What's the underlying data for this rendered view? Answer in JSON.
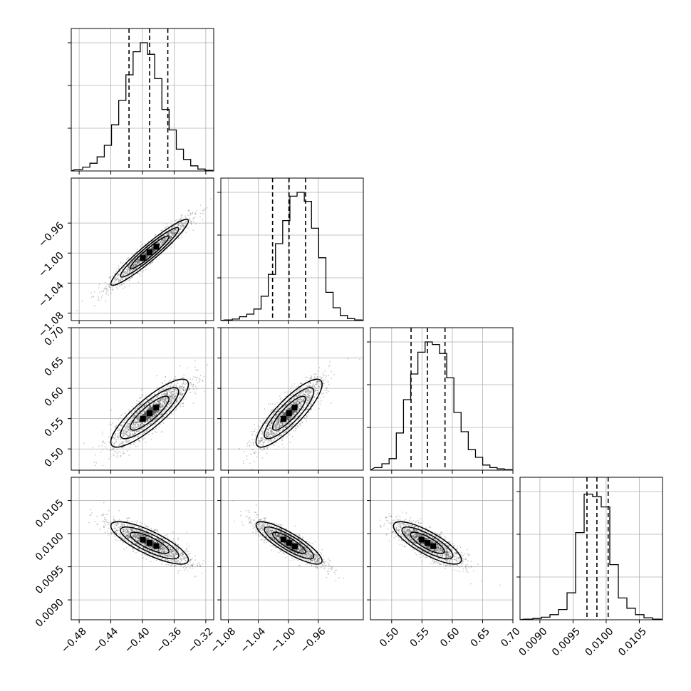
{
  "chart_data": {
    "type": "corner",
    "n_params": 4,
    "grid": true,
    "quantiles": [
      0.16,
      0.5,
      0.84
    ],
    "params": [
      {
        "range": [
          -0.49,
          -0.31
        ],
        "ticks": [
          -0.48,
          -0.44,
          -0.4,
          -0.36,
          -0.32
        ],
        "tick_labels": [
          "−0.48",
          "−0.44",
          "−0.40",
          "−0.36",
          "−0.32"
        ],
        "quantile_values": [
          -0.417,
          -0.391,
          -0.368
        ],
        "hist": [
          0.012,
          0.03,
          0.06,
          0.11,
          0.2,
          0.36,
          0.55,
          0.75,
          0.93,
          1.0,
          0.91,
          0.72,
          0.48,
          0.32,
          0.17,
          0.09,
          0.04,
          0.015,
          0.005
        ]
      },
      {
        "range": [
          -1.09,
          -0.9
        ],
        "ticks": [
          -1.08,
          -1.04,
          -1.0,
          -0.96
        ],
        "tick_labels": [
          "−1.08",
          "−1.04",
          "−1.00",
          "−0.96"
        ],
        "quantile_values": [
          -1.021,
          -0.999,
          -0.977
        ],
        "hist": [
          0.005,
          0.012,
          0.03,
          0.05,
          0.09,
          0.19,
          0.36,
          0.6,
          0.78,
          0.97,
          1.0,
          0.93,
          0.72,
          0.49,
          0.22,
          0.1,
          0.04,
          0.015,
          0.005
        ]
      },
      {
        "range": [
          0.465,
          0.7
        ],
        "ticks": [
          0.5,
          0.55,
          0.6,
          0.65,
          0.7
        ],
        "tick_labels": [
          "0.50",
          "0.55",
          "0.60",
          "0.65",
          "0.70"
        ],
        "quantile_values": [
          0.532,
          0.559,
          0.588
        ],
        "hist": [
          0.02,
          0.05,
          0.09,
          0.29,
          0.55,
          0.75,
          0.92,
          1.0,
          0.98,
          0.91,
          0.72,
          0.45,
          0.3,
          0.16,
          0.1,
          0.04,
          0.02,
          0.01,
          0.004
        ]
      },
      {
        "range": [
          0.0087,
          0.01085
        ],
        "ticks": [
          0.009,
          0.0095,
          0.01,
          0.0105
        ],
        "tick_labels": [
          "0.0090",
          "0.0095",
          "0.0100",
          "0.0105"
        ],
        "quantile_values": [
          0.00971,
          0.00986,
          0.01003
        ],
        "hist": [
          0.005,
          0.01,
          0.02,
          0.04,
          0.08,
          0.21,
          0.68,
          0.98,
          0.96,
          0.88,
          0.43,
          0.17,
          0.09,
          0.04,
          0.015,
          0.005
        ]
      }
    ],
    "correlations": {
      "1-0": 0.95,
      "2-0": 0.85,
      "2-1": 0.85,
      "3-0": -0.8,
      "3-1": -0.85,
      "3-2": -0.8
    }
  }
}
